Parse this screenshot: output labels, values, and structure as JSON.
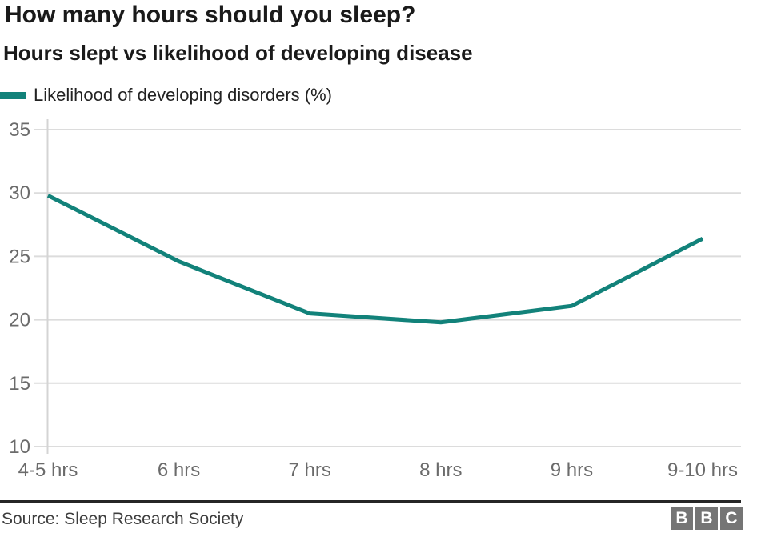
{
  "header": {
    "title": "How many hours should you sleep?",
    "subtitle": "Hours slept vs likelihood of developing disease"
  },
  "legend": {
    "label": "Likelihood of developing disorders (%)",
    "swatch_color": "#12827a"
  },
  "chart_data": {
    "type": "line",
    "categories": [
      "4-5 hrs",
      "6 hrs",
      "7 hrs",
      "8 hrs",
      "9 hrs",
      "9-10 hrs"
    ],
    "series": [
      {
        "name": "Likelihood of developing disorders (%)",
        "values": [
          29.8,
          24.6,
          20.5,
          19.8,
          21.1,
          26.4
        ]
      }
    ],
    "title": "How many hours should you sleep?",
    "subtitle": "Hours slept vs likelihood of developing disease",
    "xlabel": "",
    "ylabel": "",
    "ylim": [
      10,
      35
    ],
    "yticks": [
      10,
      15,
      20,
      25,
      30,
      35
    ],
    "grid": true,
    "legend_position": "top-left",
    "line_color": "#12827a",
    "grid_color": "#dcdcdc",
    "axis_color": "#d4d4d4",
    "tick_label_color": "#6b6b6b"
  },
  "footer": {
    "source": "Source: Sleep Research Society",
    "logo_letters": [
      "B",
      "B",
      "C"
    ],
    "logo_color": "#757575"
  }
}
